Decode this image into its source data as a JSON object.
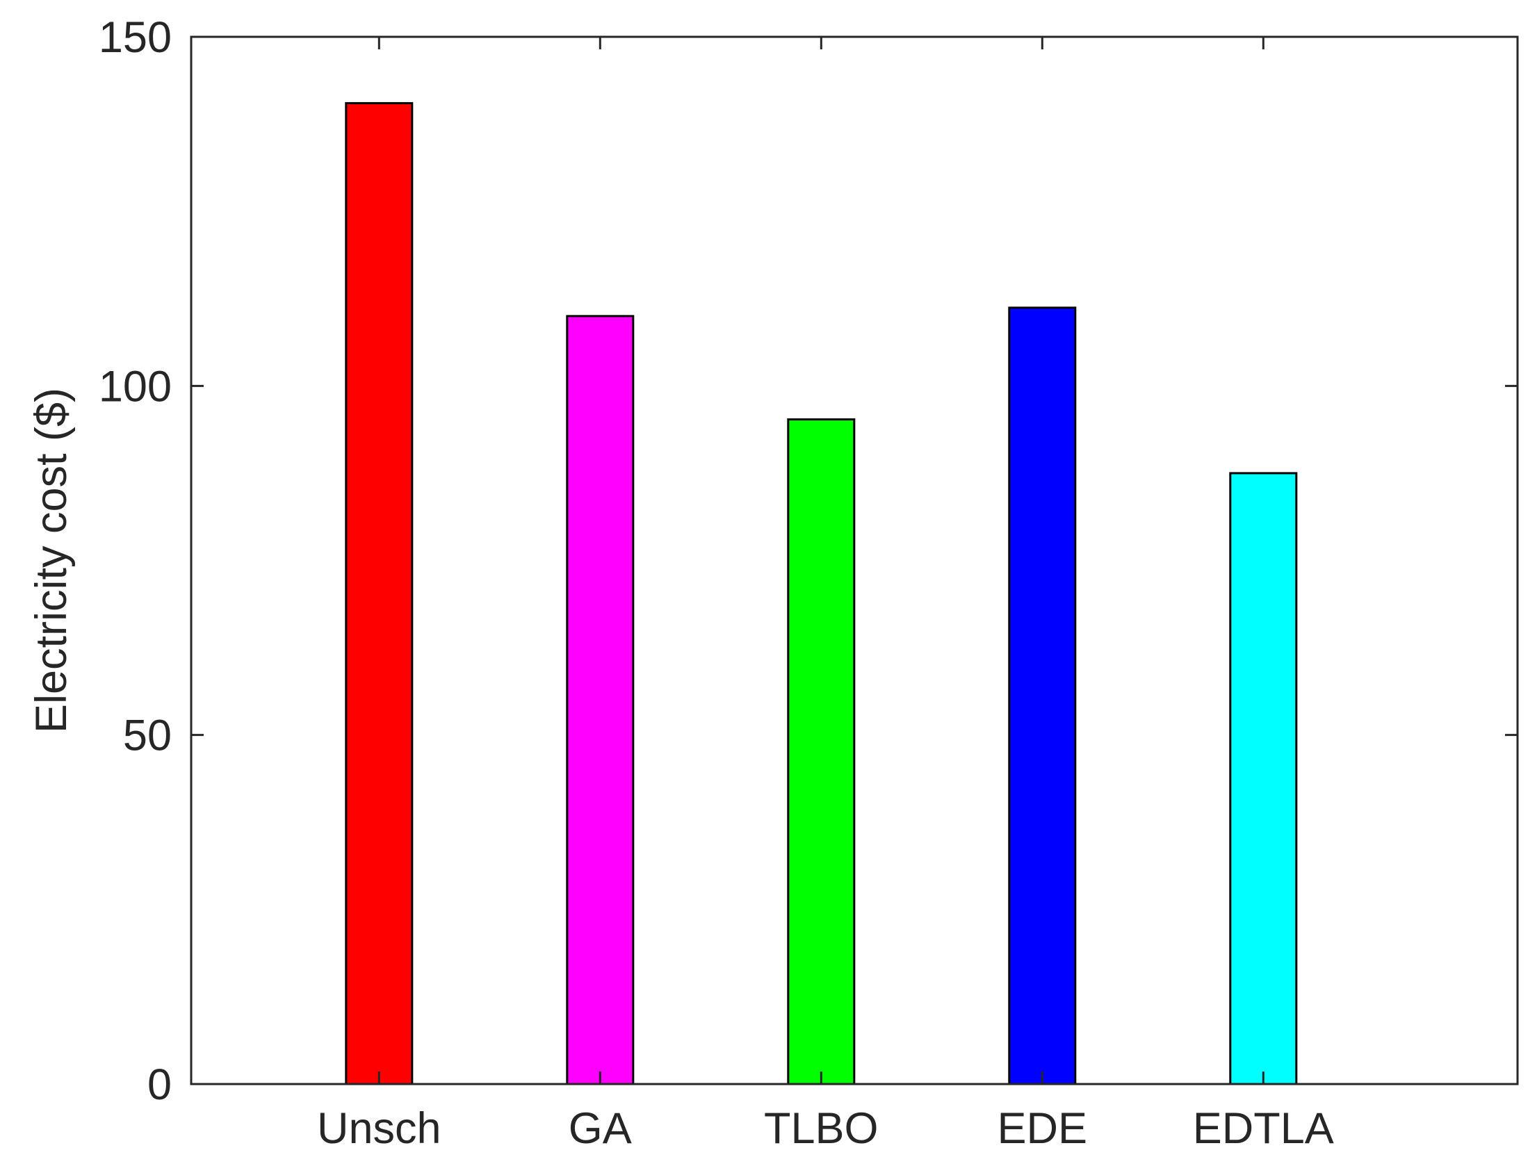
{
  "chart_data": {
    "type": "bar",
    "title": "",
    "xlabel": "",
    "ylabel": "Electricity cost ($)",
    "categories": [
      "Unsch",
      "GA",
      "TLBO",
      "EDE",
      "EDTLA"
    ],
    "values": [
      140.5,
      110,
      95.2,
      111.2,
      87.5
    ],
    "colors": [
      "#ff0000",
      "#ff00ff",
      "#00ff00",
      "#0000ff",
      "#00ffff"
    ],
    "ylim": [
      0,
      150
    ],
    "xlim": [
      0.15,
      6.15
    ],
    "yticks": [
      0,
      50,
      100,
      150
    ],
    "ytick_labels": [
      "0",
      "50",
      "100",
      "150"
    ],
    "grid": false,
    "box": true
  }
}
